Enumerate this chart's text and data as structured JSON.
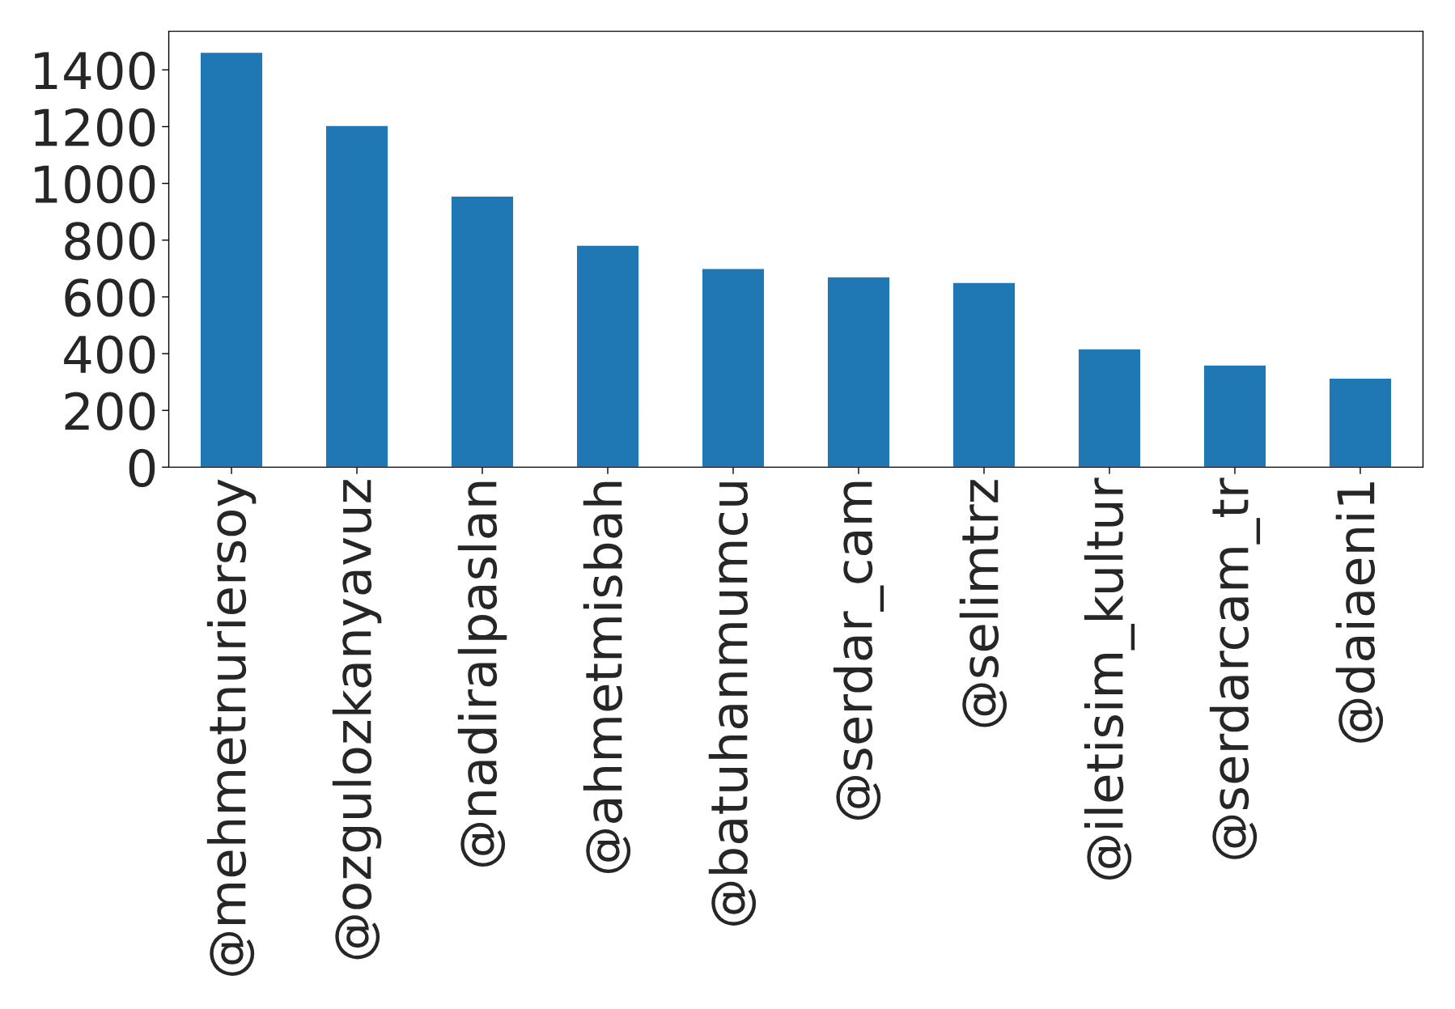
{
  "chart_data": {
    "type": "bar",
    "categories": [
      "@mehmetnuriersoy",
      "@ozgulozkanyavuz",
      "@nadiralpaslan",
      "@ahmetmisbah",
      "@batuhanmumcu",
      "@serdar_cam",
      "@selimtrz",
      "@iletisim_kultur",
      "@serdarcam_tr",
      "@daiaeni1"
    ],
    "values": [
      1462,
      1204,
      955,
      782,
      700,
      671,
      651,
      417,
      360,
      314
    ],
    "color": "#1f77b4",
    "ylim": [
      0,
      1536
    ],
    "yticks": [
      0,
      200,
      400,
      600,
      800,
      1000,
      1200,
      1400
    ],
    "grid": false
  }
}
